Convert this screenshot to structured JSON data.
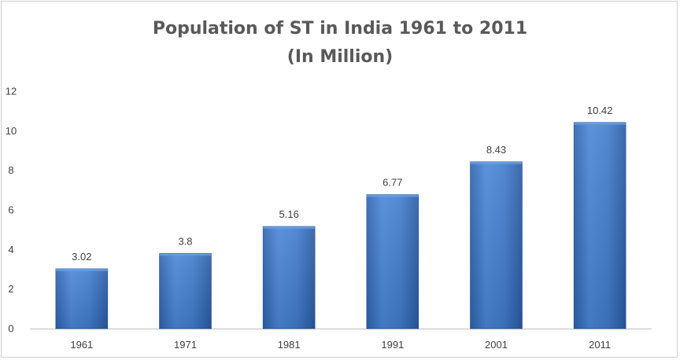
{
  "chart_data": {
    "type": "bar",
    "title_line1": "Population of ST in India 1961 to 2011",
    "title_line2": "(In Million)",
    "categories": [
      "1961",
      "1971",
      "1981",
      "1991",
      "2001",
      "2011"
    ],
    "values": [
      3.02,
      3.8,
      5.16,
      6.77,
      8.43,
      10.42
    ],
    "data_labels": [
      "3.02",
      "3.8",
      "5.16",
      "6.77",
      "8.43",
      "10.42"
    ],
    "ylim": [
      0,
      12
    ],
    "yticks": [
      0,
      2,
      4,
      6,
      8,
      10,
      12
    ],
    "xlabel": "",
    "ylabel": "",
    "grid": false,
    "legend": "none",
    "colors": {
      "bar_top": "#5a93dd",
      "bar_mid": "#3f7fd1",
      "bar_bottom": "#2a5ea8",
      "bar_edge": "#2b579a",
      "axis": "#bfbfbf",
      "text": "#404040",
      "title": "#595959"
    }
  }
}
